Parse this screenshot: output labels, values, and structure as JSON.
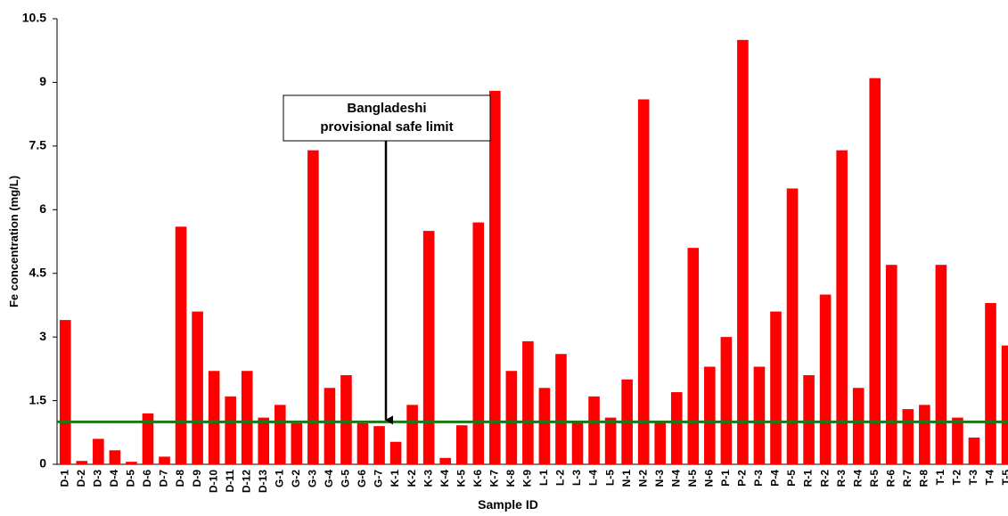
{
  "chart_data": {
    "type": "bar",
    "x_label": "Sample ID",
    "y_label": "Fe concentration (mg/L)",
    "categories": [
      "D-1",
      "D-2",
      "D-3",
      "D-4",
      "D-5",
      "D-6",
      "D-7",
      "D-8",
      "D-9",
      "D-10",
      "D-11",
      "D-12",
      "D-13",
      "G-1",
      "G-2",
      "G-3",
      "G-4",
      "G-5",
      "G-6",
      "G-7",
      "K-1",
      "K-2",
      "K-3",
      "K-4",
      "K-5",
      "K-6",
      "K-7",
      "K-8",
      "K-9",
      "L-1",
      "L-2",
      "L-3",
      "L-4",
      "L-5",
      "N-1",
      "N-2",
      "N-3",
      "N-4",
      "N-5",
      "N-6",
      "P-1",
      "P-2",
      "P-3",
      "P-4",
      "P-5",
      "R-1",
      "R-2",
      "R-3",
      "R-4",
      "R-5",
      "R-6",
      "R-7",
      "R-8",
      "T-1",
      "T-2",
      "T-3",
      "T-4",
      "T-5"
    ],
    "values": [
      3.4,
      0.08,
      0.6,
      0.33,
      0.06,
      1.2,
      0.18,
      5.6,
      3.6,
      2.2,
      1.6,
      2.2,
      1.1,
      1.4,
      0.97,
      7.4,
      1.8,
      2.1,
      0.97,
      0.9,
      0.53,
      1.4,
      5.5,
      0.15,
      0.92,
      5.7,
      8.8,
      2.2,
      2.9,
      1.8,
      2.6,
      1.0,
      1.6,
      1.1,
      2.0,
      8.6,
      1.0,
      1.7,
      5.1,
      2.3,
      3.0,
      10.0,
      2.3,
      3.6,
      6.5,
      2.1,
      4.0,
      7.4,
      1.8,
      9.1,
      4.7,
      1.3,
      1.4,
      4.7,
      1.1,
      0.63,
      3.8,
      2.8
    ],
    "color": "#ff0000",
    "ylim": [
      0,
      10.5
    ],
    "yticks": [
      0,
      1.5,
      3,
      4.5,
      6,
      7.5,
      9,
      10.5
    ],
    "reference_line": {
      "value": 1,
      "color": "#1a7a1a"
    },
    "annotation": [
      "Bangladeshi",
      "provisional safe limit"
    ]
  }
}
